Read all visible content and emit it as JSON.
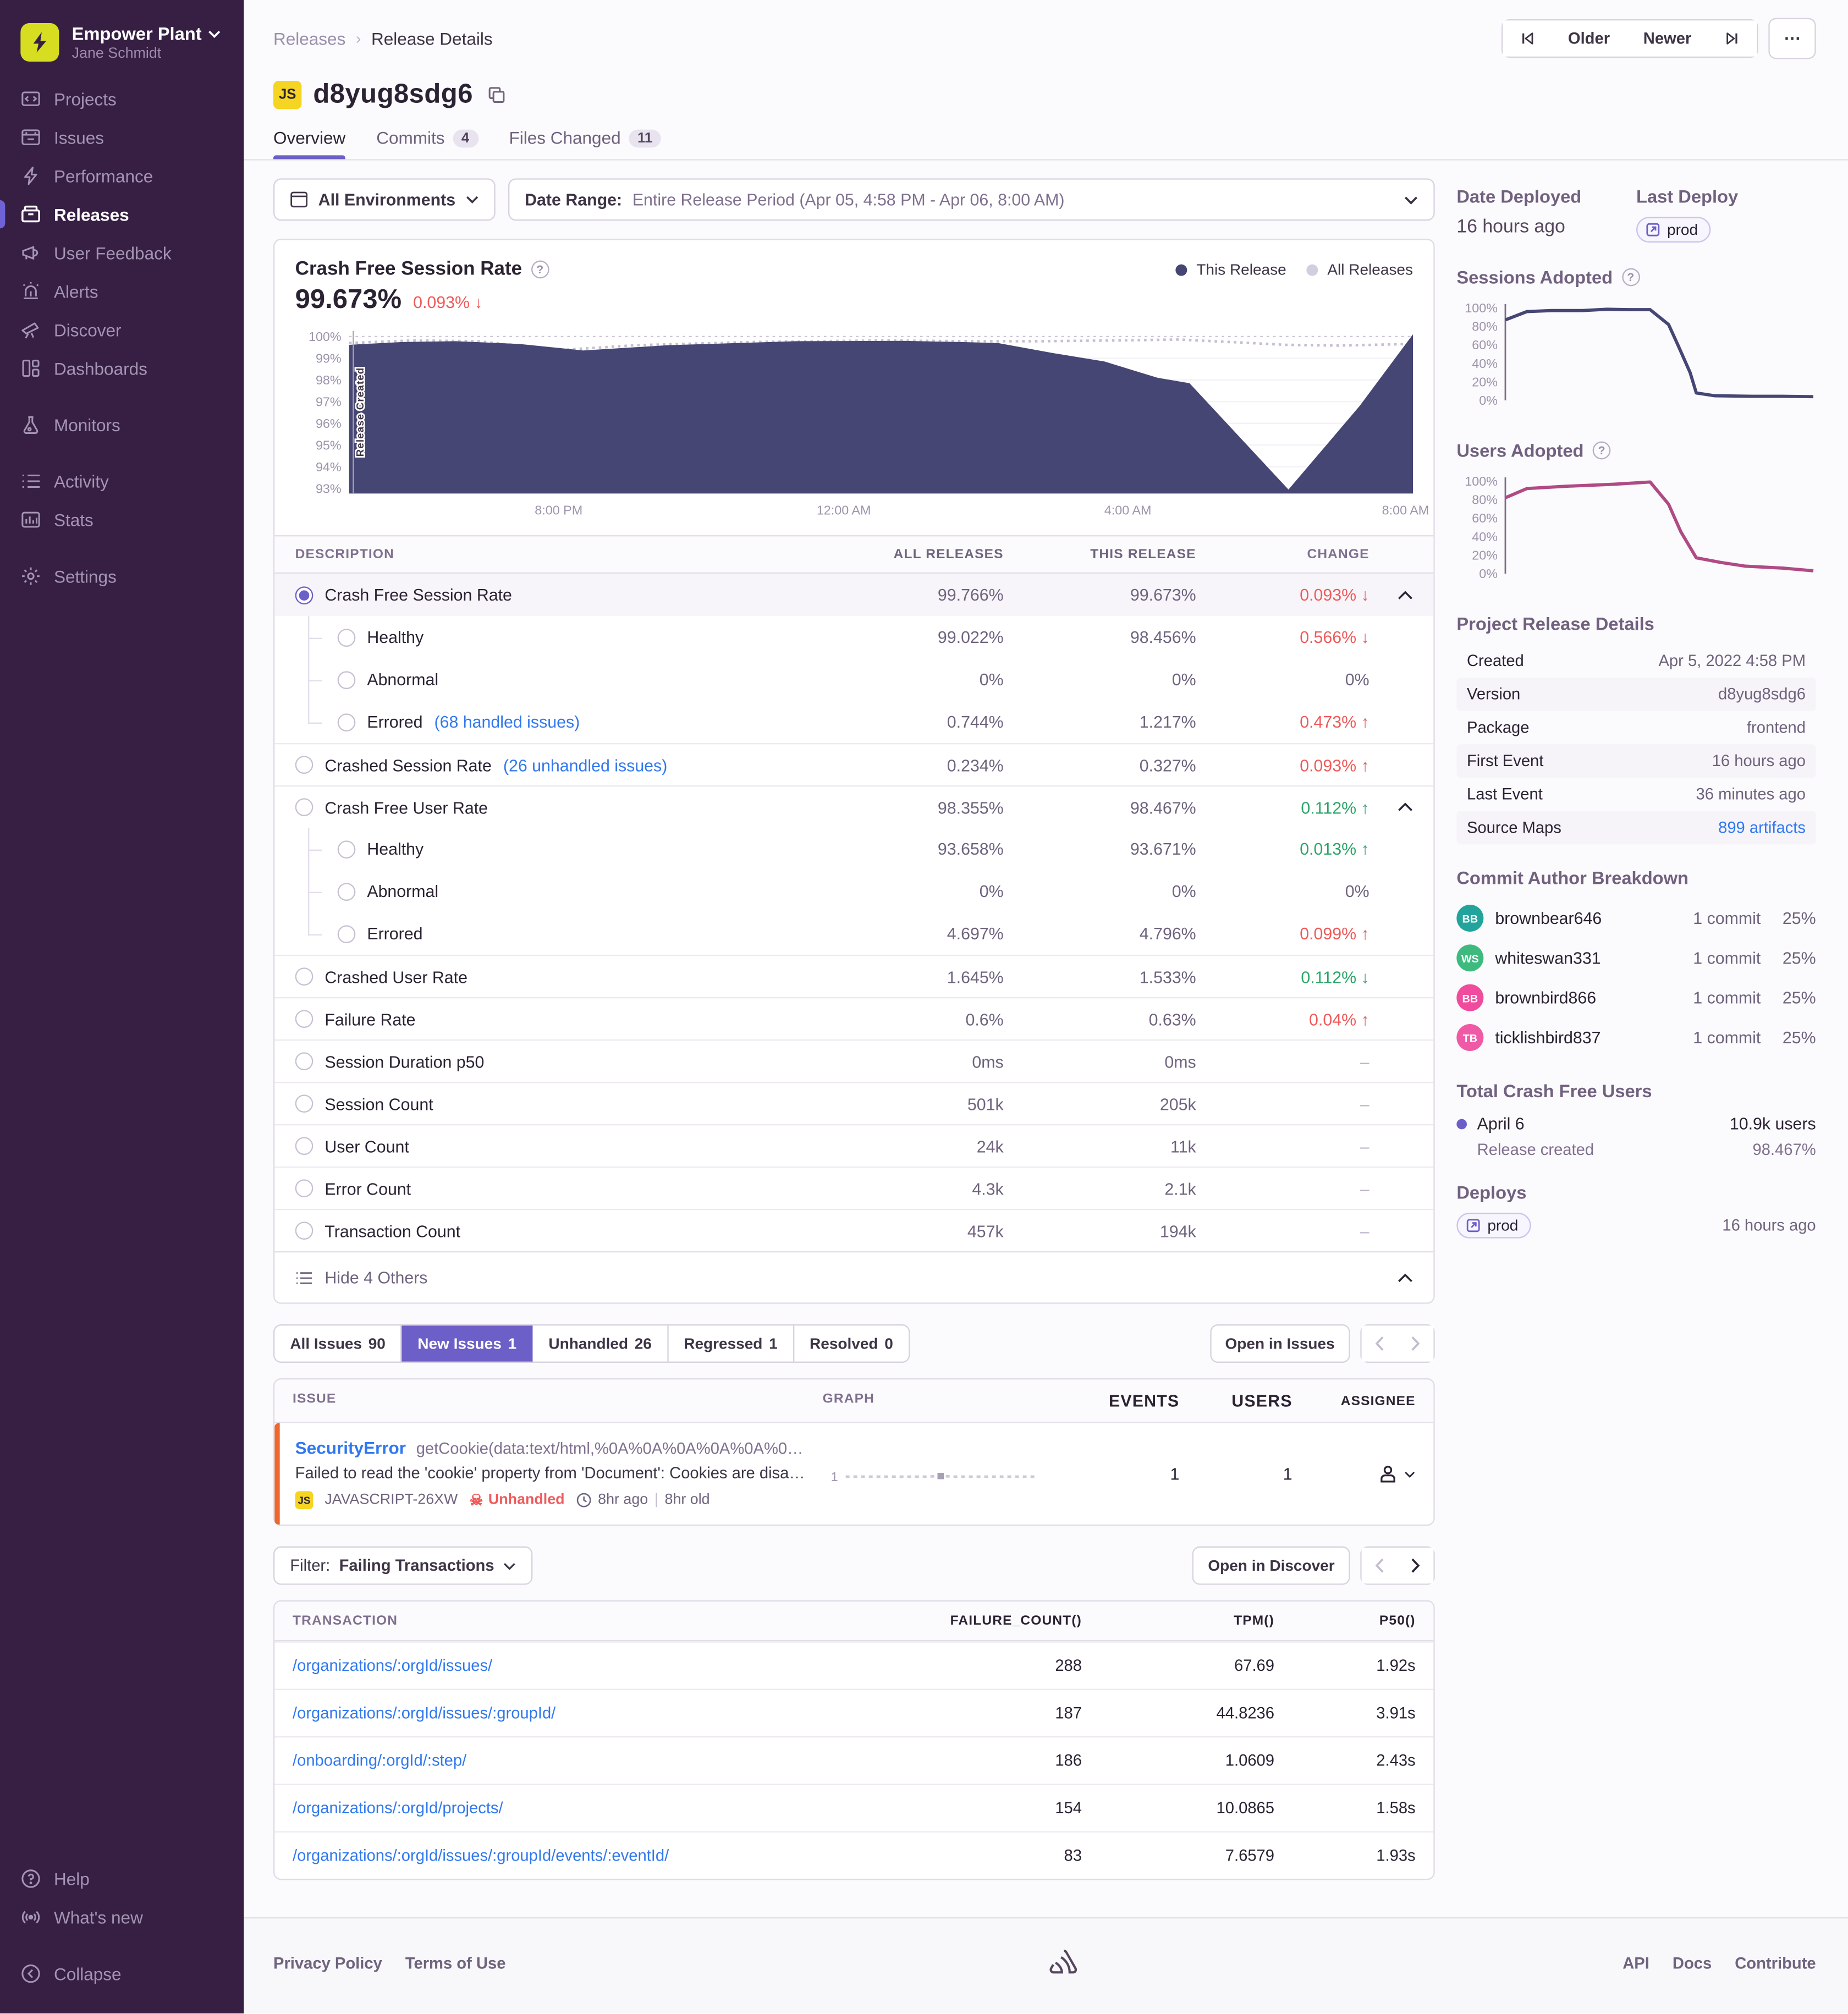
{
  "colors": {
    "accent": "#6c5fc7",
    "sidebar_bg": "#371f44",
    "red": "#ef5a5a",
    "green": "#2ba568",
    "link_blue": "#3178ef",
    "chart_navy": "#454673",
    "all_releases_gray": "#c6bfd4",
    "users_adopted_pink": "#b04a85",
    "issue_stripe_orange": "#ee672e",
    "js_badge_yellow": "#f5d422"
  },
  "sidebar": {
    "org": "Empower Plant",
    "user": "Jane Schmidt",
    "items": [
      {
        "label": "Projects"
      },
      {
        "label": "Issues"
      },
      {
        "label": "Performance"
      },
      {
        "label": "Releases"
      },
      {
        "label": "User Feedback"
      },
      {
        "label": "Alerts"
      },
      {
        "label": "Discover"
      },
      {
        "label": "Dashboards"
      },
      {
        "label": "Monitors"
      },
      {
        "label": "Activity"
      },
      {
        "label": "Stats"
      },
      {
        "label": "Settings"
      }
    ],
    "bottom": [
      {
        "label": "Help"
      },
      {
        "label": "What's new"
      },
      {
        "label": "Collapse"
      }
    ]
  },
  "header": {
    "breadcrumb": {
      "parent": "Releases",
      "current": "Release Details"
    },
    "older": "Older",
    "newer": "Newer",
    "more": "⋯"
  },
  "release": {
    "project_badge": "JS",
    "version": "d8yug8sdg6",
    "tabs": [
      {
        "label": "Overview",
        "count": ""
      },
      {
        "label": "Commits",
        "count": "4"
      },
      {
        "label": "Files Changed",
        "count": "11"
      }
    ]
  },
  "filters": {
    "environments": "All Environments",
    "date_range_label": "Date Range:",
    "date_range_value": "Entire Release Period (Apr 05, 4:58 PM - Apr 06, 8:00 AM)"
  },
  "chart_panel": {
    "title": "Crash Free Session Rate",
    "big_value": "99.673%",
    "big_change": "0.093% ↓",
    "legend": [
      {
        "label": "This Release",
        "dot_style": "background:#454673"
      },
      {
        "label": "All Releases",
        "dot_style": "background:#d3cede"
      }
    ]
  },
  "chart_data": [
    {
      "type": "area",
      "title": "Crash Free Session Rate",
      "ylim": [
        92.8,
        100.25
      ],
      "yticks": [
        {
          "v": 100,
          "label": "100%"
        },
        {
          "v": 99,
          "label": "99%"
        },
        {
          "v": 98,
          "label": "98%"
        },
        {
          "v": 97,
          "label": "97%"
        },
        {
          "v": 96,
          "label": "96%"
        },
        {
          "v": 95,
          "label": "95%"
        },
        {
          "v": 94,
          "label": "94%"
        },
        {
          "v": 93,
          "label": "93%"
        }
      ],
      "xticks": [
        {
          "x": 0.197,
          "label": "8:00 PM"
        },
        {
          "x": 0.465,
          "label": "12:00 AM"
        },
        {
          "x": 0.732,
          "label": "4:00 AM"
        },
        {
          "x": 0.993,
          "label": "8:00 AM"
        }
      ],
      "grid": [
        {
          "v": 100,
          "color": "#ccc5d6",
          "dash": "2,3"
        },
        {
          "v": 99,
          "color": "#f4f1f7"
        },
        {
          "v": 98,
          "color": "#f4f1f7"
        },
        {
          "v": 97,
          "color": "#f4f1f7"
        },
        {
          "v": 96,
          "color": "#f4f1f7"
        },
        {
          "v": 95,
          "color": "#f4f1f7"
        },
        {
          "v": 94,
          "color": "#f4f1f7"
        }
      ],
      "axis_bottom": true,
      "annotation": {
        "x": 0.004,
        "label": "Release Created"
      },
      "series": [
        {
          "name": "All Releases",
          "style": "line",
          "color": "#c6bfd4",
          "dash": "2,3",
          "width": 2,
          "points": [
            [
              0,
              99.7
            ],
            [
              0.06,
              99.82
            ],
            [
              0.12,
              99.78
            ],
            [
              0.2,
              99.38
            ],
            [
              0.27,
              99.6
            ],
            [
              0.38,
              99.75
            ],
            [
              0.5,
              99.82
            ],
            [
              0.58,
              99.78
            ],
            [
              0.65,
              99.78
            ],
            [
              0.72,
              99.82
            ],
            [
              0.78,
              99.86
            ],
            [
              0.84,
              99.72
            ],
            [
              0.88,
              99.62
            ],
            [
              0.93,
              99.58
            ],
            [
              1,
              99.66
            ]
          ]
        },
        {
          "name": "This Release",
          "style": "area",
          "color": "#454673",
          "points": [
            [
              0,
              99.62
            ],
            [
              0.05,
              99.75
            ],
            [
              0.1,
              99.78
            ],
            [
              0.16,
              99.66
            ],
            [
              0.22,
              99.36
            ],
            [
              0.3,
              99.6
            ],
            [
              0.42,
              99.78
            ],
            [
              0.52,
              99.8
            ],
            [
              0.58,
              99.74
            ],
            [
              0.61,
              99.7
            ],
            [
              0.66,
              99.25
            ],
            [
              0.71,
              98.85
            ],
            [
              0.76,
              98.1
            ],
            [
              0.79,
              97.85
            ],
            [
              0.883,
              92.95
            ],
            [
              0.95,
              96.8
            ],
            [
              1,
              100.1
            ]
          ]
        }
      ]
    },
    {
      "type": "line",
      "title": "Sessions Adopted",
      "ylim": [
        0,
        104
      ],
      "yticks": [
        {
          "v": 100,
          "label": "100%"
        },
        {
          "v": 80,
          "label": "80%"
        },
        {
          "v": 60,
          "label": "60%"
        },
        {
          "v": 40,
          "label": "40%"
        },
        {
          "v": 20,
          "label": "20%"
        },
        {
          "v": 0,
          "label": "0%"
        }
      ],
      "axis_line": true,
      "series": [
        {
          "name": "Sessions Adopted",
          "style": "line",
          "color": "#454673",
          "width": 2.5,
          "points": [
            [
              0,
              87
            ],
            [
              0.07,
              96
            ],
            [
              0.15,
              97
            ],
            [
              0.25,
              97
            ],
            [
              0.33,
              98.5
            ],
            [
              0.4,
              98
            ],
            [
              0.47,
              98
            ],
            [
              0.53,
              82
            ],
            [
              0.56,
              60
            ],
            [
              0.6,
              30
            ],
            [
              0.62,
              8
            ],
            [
              0.68,
              5
            ],
            [
              0.8,
              4.5
            ],
            [
              0.9,
              4.5
            ],
            [
              1,
              4
            ]
          ]
        }
      ]
    },
    {
      "type": "line",
      "title": "Users Adopted",
      "ylim": [
        0,
        104
      ],
      "yticks": [
        {
          "v": 100,
          "label": "100%"
        },
        {
          "v": 80,
          "label": "80%"
        },
        {
          "v": 60,
          "label": "60%"
        },
        {
          "v": 40,
          "label": "40%"
        },
        {
          "v": 20,
          "label": "20%"
        },
        {
          "v": 0,
          "label": "0%"
        }
      ],
      "axis_line": true,
      "series": [
        {
          "name": "Users Adopted",
          "style": "line",
          "color": "#b04a85",
          "width": 2.5,
          "points": [
            [
              0,
              82
            ],
            [
              0.07,
              92
            ],
            [
              0.2,
              94.5
            ],
            [
              0.35,
              96.5
            ],
            [
              0.47,
              99
            ],
            [
              0.53,
              75
            ],
            [
              0.57,
              45
            ],
            [
              0.62,
              17
            ],
            [
              0.7,
              12
            ],
            [
              0.78,
              8
            ],
            [
              0.9,
              6
            ],
            [
              1,
              3
            ]
          ]
        }
      ]
    },
    {
      "type": "sparkline",
      "title": "issue events sparkline",
      "ylim": [
        0,
        3
      ],
      "yticks": [
        {
          "v": 1,
          "label": "1"
        }
      ],
      "marker": {
        "x": 0.5,
        "v": 1.05,
        "color": "#a79fb2"
      },
      "series": [
        {
          "name": "events",
          "style": "line",
          "color": "#cfc8d8",
          "dash": "3,3",
          "width": 2,
          "points": [
            [
              0,
              1
            ],
            [
              0.42,
              1
            ],
            [
              0.5,
              1.05
            ],
            [
              0.58,
              1
            ],
            [
              1,
              1
            ]
          ]
        }
      ]
    }
  ],
  "metrics": {
    "headers": [
      "DESCRIPTION",
      "ALL RELEASES",
      "THIS RELEASE",
      "CHANGE"
    ],
    "rows": [
      {
        "label": "Crash Free Session Rate",
        "link": "",
        "all": "99.766%",
        "this": "99.673%",
        "change": "0.093% ↓"
      },
      {
        "label": "Healthy",
        "link": "",
        "all": "99.022%",
        "this": "98.456%",
        "change": "0.566% ↓"
      },
      {
        "label": "Abnormal",
        "link": "",
        "all": "0%",
        "this": "0%",
        "change": "0%"
      },
      {
        "label": "Errored",
        "link": "(68 handled issues)",
        "all": "0.744%",
        "this": "1.217%",
        "change": "0.473% ↑"
      },
      {
        "label": "Crashed Session Rate",
        "link": "(26 unhandled issues)",
        "all": "0.234%",
        "this": "0.327%",
        "change": "0.093% ↑"
      },
      {
        "label": "Crash Free User Rate",
        "link": "",
        "all": "98.355%",
        "this": "98.467%",
        "change": "0.112% ↑"
      },
      {
        "label": "Healthy",
        "link": "",
        "all": "93.658%",
        "this": "93.671%",
        "change": "0.013% ↑"
      },
      {
        "label": "Abnormal",
        "link": "",
        "all": "0%",
        "this": "0%",
        "change": "0%"
      },
      {
        "label": "Errored",
        "link": "",
        "all": "4.697%",
        "this": "4.796%",
        "change": "0.099% ↑"
      },
      {
        "label": "Crashed User Rate",
        "link": "",
        "all": "1.645%",
        "this": "1.533%",
        "change": "0.112% ↓"
      },
      {
        "label": "Failure Rate",
        "link": "",
        "all": "0.6%",
        "this": "0.63%",
        "change": "0.04% ↑"
      },
      {
        "label": "Session Duration p50",
        "link": "",
        "all": "0ms",
        "this": "0ms",
        "change": "–"
      },
      {
        "label": "Session Count",
        "link": "",
        "all": "501k",
        "this": "205k",
        "change": "–"
      },
      {
        "label": "User Count",
        "link": "",
        "all": "24k",
        "this": "11k",
        "change": "–"
      },
      {
        "label": "Error Count",
        "link": "",
        "all": "4.3k",
        "this": "2.1k",
        "change": "–"
      },
      {
        "label": "Transaction Count",
        "link": "",
        "all": "457k",
        "this": "194k",
        "change": "–"
      }
    ],
    "footer": "Hide 4 Others"
  },
  "issues": {
    "tabs": [
      {
        "label": "All Issues",
        "count": "90"
      },
      {
        "label": "New Issues",
        "count": "1"
      },
      {
        "label": "Unhandled",
        "count": "26"
      },
      {
        "label": "Regressed",
        "count": "1"
      },
      {
        "label": "Resolved",
        "count": "0"
      }
    ],
    "open_button": "Open in Issues",
    "headers": [
      "ISSUE",
      "GRAPH",
      "EVENTS",
      "USERS",
      "ASSIGNEE"
    ],
    "row": {
      "title": "SecurityError",
      "culprit": "getCookie(data:text/html,%0A%0A%0A%0A%0A%0…",
      "message": "Failed to read the 'cookie' property from 'Document': Cookies are disa…",
      "badge": "JS",
      "project": "JAVASCRIPT-26XW",
      "unhandled": "Unhandled",
      "skull": "☠",
      "age": "8hr ago",
      "age_sep": "|",
      "old": "8hr old",
      "events": "1",
      "users": "1"
    }
  },
  "transactions": {
    "filter_label": "Filter:",
    "filter_value": "Failing Transactions",
    "open_button": "Open in Discover",
    "headers": [
      "TRANSACTION",
      "FAILURE_COUNT()",
      "TPM()",
      "P50()"
    ],
    "rows": [
      {
        "name": "/organizations/:orgId/issues/",
        "failure": "288",
        "tpm": "67.69",
        "p50": "1.92s"
      },
      {
        "name": "/organizations/:orgId/issues/:groupId/",
        "failure": "187",
        "tpm": "44.8236",
        "p50": "3.91s"
      },
      {
        "name": "/onboarding/:orgId/:step/",
        "failure": "186",
        "tpm": "1.0609",
        "p50": "2.43s"
      },
      {
        "name": "/organizations/:orgId/projects/",
        "failure": "154",
        "tpm": "10.0865",
        "p50": "1.58s"
      },
      {
        "name": "/organizations/:orgId/issues/:groupId/events/:eventId/",
        "failure": "83",
        "tpm": "7.6579",
        "p50": "1.93s"
      }
    ]
  },
  "right_panel": {
    "date_deployed_label": "Date Deployed",
    "date_deployed": "16 hours ago",
    "last_deploy_label": "Last Deploy",
    "last_deploy_env": "prod",
    "sessions_adopted_label": "Sessions Adopted",
    "users_adopted_label": "Users Adopted",
    "details_title": "Project Release Details",
    "details": [
      {
        "k": "Created",
        "v": "Apr 5, 2022 4:58 PM"
      },
      {
        "k": "Version",
        "v": "d8yug8sdg6"
      },
      {
        "k": "Package",
        "v": "frontend"
      },
      {
        "k": "First Event",
        "v": "16 hours ago"
      },
      {
        "k": "Last Event",
        "v": "36 minutes ago"
      },
      {
        "k": "Source Maps",
        "v": "899 artifacts"
      }
    ],
    "commits_title": "Commit Author Breakdown",
    "authors": [
      {
        "initials": "BB",
        "name": "brownbear646",
        "commits": "1 commit",
        "pct": "25%",
        "style": "background:#22a39b"
      },
      {
        "initials": "WS",
        "name": "whiteswan331",
        "commits": "1 commit",
        "pct": "25%",
        "style": "background:#3eba7e"
      },
      {
        "initials": "BB",
        "name": "brownbird866",
        "commits": "1 commit",
        "pct": "25%",
        "style": "background:#f04b9d"
      },
      {
        "initials": "TB",
        "name": "ticklishbird837",
        "commits": "1 commit",
        "pct": "25%",
        "style": "background:#f059a5"
      }
    ],
    "cfu_title": "Total Crash Free Users",
    "cfu_date": "April 6",
    "cfu_users": "10.9k users",
    "cfu_sub": "Release created",
    "cfu_pct": "98.467%",
    "deploys_title": "Deploys",
    "deploy_env": "prod",
    "deploy_time": "16 hours ago"
  },
  "footer": {
    "privacy": "Privacy Policy",
    "terms": "Terms of Use",
    "api": "API",
    "docs": "Docs",
    "contribute": "Contribute"
  }
}
